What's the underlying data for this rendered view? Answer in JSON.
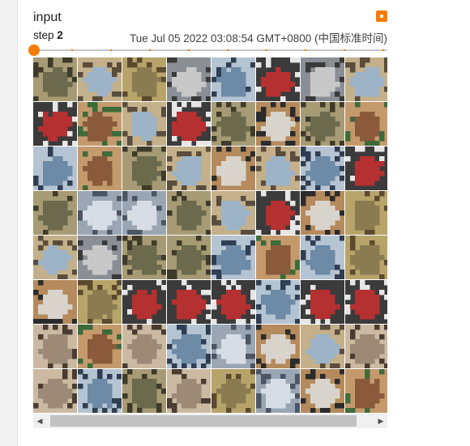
{
  "card": {
    "tag": "input",
    "step_label": "step",
    "step_value": "2",
    "wall_time": "Tue Jul 05 2022 03:08:54 GMT+0800 (中国标准时间)"
  },
  "scrollbar": {
    "left_arrow": "◀",
    "right_arrow": "▶"
  },
  "colors": {
    "accent": "#f57c00",
    "track": "#c8c8c8",
    "scroll_thumb": "#c1c1c1"
  },
  "image_grid": {
    "rows": 8,
    "cols": 8,
    "tiles": [
      [
        "frog",
        "bird",
        "deer",
        "automobile",
        "ship",
        "truck",
        "automobile",
        "bird"
      ],
      [
        "truck",
        "horse",
        "bird",
        "truck",
        "frog",
        "dog",
        "frog",
        "horse"
      ],
      [
        "ship",
        "horse",
        "frog",
        "bird",
        "dog",
        "bird",
        "ship",
        "truck"
      ],
      [
        "frog",
        "airplane",
        "airplane",
        "frog",
        "bird",
        "truck",
        "dog",
        "deer"
      ],
      [
        "bird",
        "automobile",
        "frog",
        "frog",
        "ship",
        "horse",
        "ship",
        "deer"
      ],
      [
        "dog",
        "deer",
        "truck",
        "truck",
        "truck",
        "ship",
        "truck",
        "truck"
      ],
      [
        "cat",
        "horse",
        "cat",
        "ship",
        "airplane",
        "dog",
        "bird",
        "cat"
      ],
      [
        "cat",
        "ship",
        "frog",
        "cat",
        "deer",
        "airplane",
        "dog",
        "horse"
      ]
    ],
    "palette": {
      "frog": [
        "#6b6a4c",
        "#3f3b2a",
        "#a69b74"
      ],
      "bird": [
        "#9cb3c8",
        "#5a4d3c",
        "#c4b08a"
      ],
      "deer": [
        "#8a7c50",
        "#5b4a2e",
        "#b7a46a"
      ],
      "automobile": [
        "#c8c8c8",
        "#3a3a3a",
        "#8a8f96"
      ],
      "ship": [
        "#6d8aa6",
        "#2f3e52",
        "#b5c4d2"
      ],
      "truck": [
        "#b53030",
        "#e6e6e6",
        "#3b3b3b"
      ],
      "horse": [
        "#8a5a3a",
        "#3e6b3a",
        "#c49a6c"
      ],
      "dog": [
        "#d8d4cc",
        "#2b2b2b",
        "#b58a5c"
      ],
      "cat": [
        "#9c8a76",
        "#4a3c30",
        "#cbb9a2"
      ],
      "airplane": [
        "#d6dde6",
        "#4b5563",
        "#9aa6b4"
      ]
    }
  }
}
